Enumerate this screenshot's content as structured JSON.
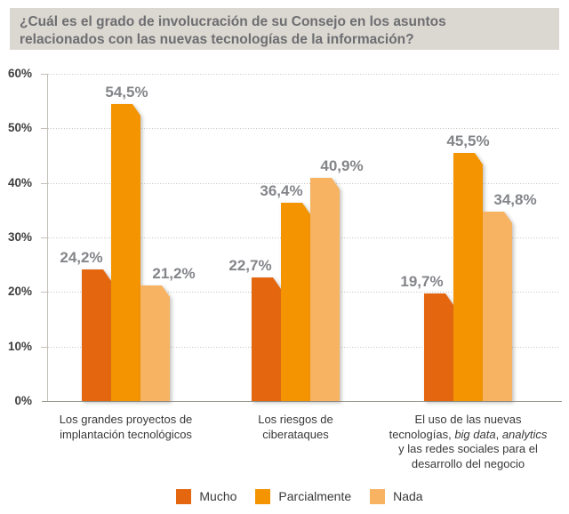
{
  "header": {
    "title": "¿Cuál es el grado de involucración de su Consejo en los asuntos relacionados con las nuevas tecnologías de la información?"
  },
  "chart_data": {
    "type": "bar",
    "title": "¿Cuál es el grado de involucración de su Consejo en los asuntos relacionados con las nuevas tecnologías de la información?",
    "categories": [
      {
        "lines": [
          "Los grandes proyectos de",
          "implantación tecnológicos"
        ],
        "italic_phrases": []
      },
      {
        "lines": [
          "Los riesgos de",
          "ciberataques"
        ],
        "italic_phrases": []
      },
      {
        "lines": [
          "El uso de las nuevas",
          "tecnologías, big data, analytics",
          "y las redes sociales para el",
          "desarrollo del negocio"
        ],
        "italic_phrases": [
          "big data",
          "analytics"
        ]
      }
    ],
    "series": [
      {
        "name": "Mucho",
        "color": "#E4670F",
        "values": [
          24.2,
          22.7,
          19.7
        ],
        "labels": [
          "24,2%",
          "22,7%",
          "19,7%"
        ]
      },
      {
        "name": "Parcialmente",
        "color": "#F39400",
        "values": [
          54.5,
          36.4,
          45.5
        ],
        "labels": [
          "54,5%",
          "36,4%",
          "45,5%"
        ]
      },
      {
        "name": "Nada",
        "color": "#F7B262",
        "values": [
          21.2,
          40.9,
          34.8
        ],
        "labels": [
          "21,2%",
          "40,9%",
          "34,8%"
        ]
      }
    ],
    "xlabel": "",
    "ylabel": "",
    "ylim": [
      0,
      60
    ],
    "yticks": [
      "0%",
      "10%",
      "20%",
      "30%",
      "40%",
      "50%",
      "60%"
    ],
    "grid": "horizontal-dotted",
    "legend_position": "bottom"
  }
}
